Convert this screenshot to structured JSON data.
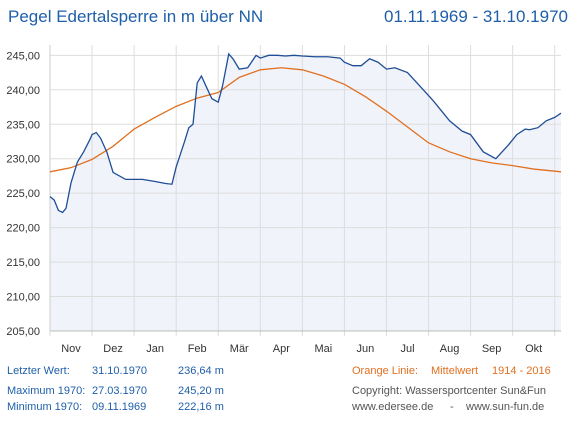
{
  "header": {
    "title": "Pegel Edertalsperre in m über NN",
    "period": "01.11.1969 - 31.10.1970"
  },
  "colors": {
    "title": "#1f5fa8",
    "level_line": "#1f4e96",
    "average_line": "#e07020",
    "plot_fill": "#f1f3fb",
    "grid": "#dddddd"
  },
  "chart_data": {
    "type": "line",
    "x_unit": "month",
    "categories": [
      "Nov",
      "Dez",
      "Jan",
      "Feb",
      "Mär",
      "Apr",
      "Mai",
      "Jun",
      "Jul",
      "Aug",
      "Sep",
      "Okt"
    ],
    "y_tick_labels": [
      "205,00",
      "210,00",
      "215,00",
      "220,00",
      "225,00",
      "230,00",
      "235,00",
      "240,00",
      "245,00"
    ],
    "ylim": [
      205,
      246.5
    ],
    "xlim": [
      0,
      12.15
    ],
    "grid": true,
    "legend": "none",
    "series": [
      {
        "key": "level_1970",
        "x": [
          0,
          0.1,
          0.2,
          0.3,
          0.38,
          0.5,
          0.65,
          0.8,
          0.95,
          1.0,
          1.1,
          1.2,
          1.35,
          1.5,
          1.8,
          2.2,
          2.5,
          2.75,
          2.9,
          3.0,
          3.2,
          3.3,
          3.4,
          3.5,
          3.6,
          3.75,
          3.85,
          4.0,
          4.1,
          4.25,
          4.35,
          4.5,
          4.7,
          4.9,
          5.0,
          5.2,
          5.4,
          5.6,
          5.8,
          6.0,
          6.3,
          6.6,
          6.9,
          7.0,
          7.2,
          7.4,
          7.6,
          7.8,
          8.0,
          8.2,
          8.5,
          8.8,
          9.1,
          9.3,
          9.5,
          9.8,
          10.0,
          10.3,
          10.6,
          10.9,
          11.1,
          11.3,
          11.4,
          11.6,
          11.8,
          12.0,
          12.15
        ],
        "values": [
          224.5,
          224.0,
          222.5,
          222.2,
          222.8,
          226.5,
          229.5,
          231.0,
          232.8,
          233.5,
          233.8,
          233.0,
          231.0,
          228.0,
          227.0,
          227.0,
          226.7,
          226.4,
          226.3,
          228.8,
          232.5,
          234.5,
          235.0,
          241.0,
          242.0,
          240.0,
          238.7,
          238.2,
          240.5,
          245.2,
          244.5,
          243.0,
          243.2,
          245.0,
          244.6,
          245.0,
          245.0,
          244.9,
          245.0,
          244.9,
          244.8,
          244.8,
          244.6,
          244.0,
          243.5,
          243.5,
          244.5,
          244.0,
          243.0,
          243.2,
          242.5,
          240.5,
          238.5,
          237.0,
          235.5,
          234.0,
          233.5,
          231.0,
          230.0,
          232.0,
          233.5,
          234.3,
          234.2,
          234.5,
          235.5,
          236.0,
          236.6
        ]
      },
      {
        "key": "mittelwert",
        "x": [
          0,
          0.5,
          1.0,
          1.5,
          2.0,
          2.5,
          3.0,
          3.5,
          4.0,
          4.5,
          5.0,
          5.5,
          6.0,
          6.5,
          7.0,
          7.5,
          8.0,
          8.5,
          9.0,
          9.5,
          10.0,
          10.5,
          11.0,
          11.5,
          12.15
        ],
        "values": [
          228.1,
          228.7,
          229.9,
          231.8,
          234.3,
          236.0,
          237.6,
          238.8,
          239.6,
          241.8,
          242.9,
          243.2,
          242.9,
          242.0,
          240.8,
          239.0,
          236.9,
          234.6,
          232.3,
          231.0,
          230.0,
          229.4,
          229.0,
          228.5,
          228.1
        ]
      }
    ]
  },
  "footer": {
    "last_label": "Letzter Wert:",
    "last_date": "31.10.1970",
    "last_value": "236,64 m",
    "max_label": "Maximum 1970:",
    "max_date": "27.03.1970",
    "max_value": "245,20 m",
    "min_label": "Minimum  1970:",
    "min_date": "09.11.1969",
    "min_value": "222,16 m",
    "orange_label": "Orange Linie:",
    "orange_text": "Mittelwert",
    "orange_years": "1914 - 2016",
    "copyright": "Copyright: Wassersportcenter Sun&Fun",
    "website1": "www.edersee.de",
    "separator": "-",
    "website2": "www.sun-fun.de"
  }
}
